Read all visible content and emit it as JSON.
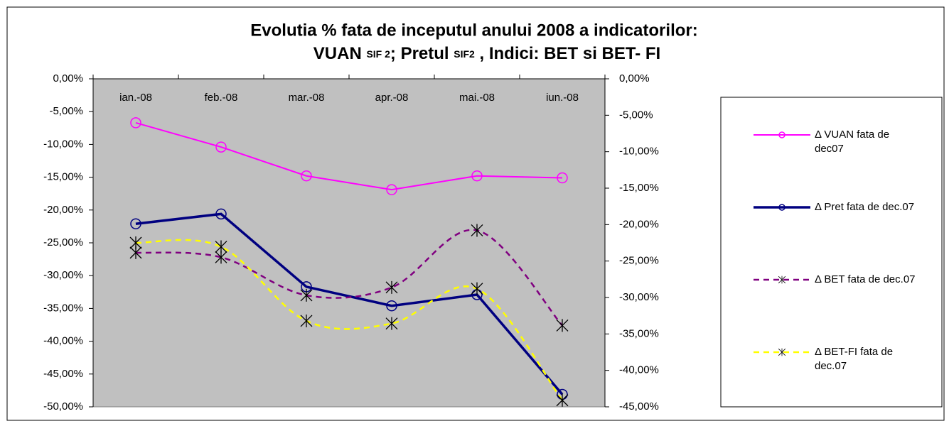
{
  "chart_data": {
    "type": "line",
    "title_line1": "Evolutia % fata de inceputul anului 2008 a indicatorilor:",
    "title_line2": [
      "VUAN ",
      "SIF 2",
      "; Pretul ",
      "SIF2",
      " , Indici: BET si BET- FI"
    ],
    "categories": [
      "ian.-08",
      "feb.-08",
      "mar.-08",
      "apr.-08",
      "mai.-08",
      "iun.-08"
    ],
    "series": [
      {
        "name": "Δ VUAN fata de dec07",
        "color": "#ff00ff",
        "marker": "circle",
        "style": "solid",
        "values": [
          -6.7,
          -10.4,
          -14.8,
          -16.9,
          -14.8,
          -15.1
        ]
      },
      {
        "name": "Δ Pret fata de dec.07",
        "color": "#000080",
        "marker": "circle",
        "style": "solid",
        "values": [
          -22.1,
          -20.6,
          -31.7,
          -34.6,
          -32.9,
          -48.1
        ]
      },
      {
        "name": "Δ BET  fata de dec.07",
        "color": "#800080",
        "marker": "star",
        "style": "dashed",
        "values": [
          -26.5,
          -27.2,
          -33.0,
          -31.8,
          -23.1,
          -37.6
        ]
      },
      {
        "name": "Δ BET-FI fata de dec.07",
        "color": "#ffff00",
        "marker": "star",
        "style": "dashed",
        "values": [
          -25.0,
          -25.6,
          -36.9,
          -37.3,
          -32.0,
          -49.0
        ]
      }
    ],
    "ylim": [
      -50,
      0
    ],
    "yticks": [
      {
        "value": 0,
        "label": "0,00%"
      },
      {
        "value": -5,
        "label": "-5,00%"
      },
      {
        "value": -10,
        "label": "-10,00%"
      },
      {
        "value": -15,
        "label": "-15,00%"
      },
      {
        "value": -20,
        "label": "-20,00%"
      },
      {
        "value": -25,
        "label": "-25,00%"
      },
      {
        "value": -30,
        "label": "-30,00%"
      },
      {
        "value": -35,
        "label": "-35,00%"
      },
      {
        "value": -40,
        "label": "-40,00%"
      },
      {
        "value": -45,
        "label": "-45,00%"
      },
      {
        "value": -50,
        "label": "-50,00%"
      }
    ],
    "y2lim": [
      -45,
      0
    ],
    "y2ticks": [
      {
        "value": 0,
        "label": "0,00%"
      },
      {
        "value": -5,
        "label": "-5,00%"
      },
      {
        "value": -10,
        "label": "-10,00%"
      },
      {
        "value": -15,
        "label": "-15,00%"
      },
      {
        "value": -20,
        "label": "-20,00%"
      },
      {
        "value": -25,
        "label": "-25,00%"
      },
      {
        "value": -30,
        "label": "-30,00%"
      },
      {
        "value": -35,
        "label": "-35,00%"
      },
      {
        "value": -40,
        "label": "-40,00%"
      },
      {
        "value": -45,
        "label": "-45,00%"
      }
    ],
    "plot_background": "#c0c0c0"
  }
}
